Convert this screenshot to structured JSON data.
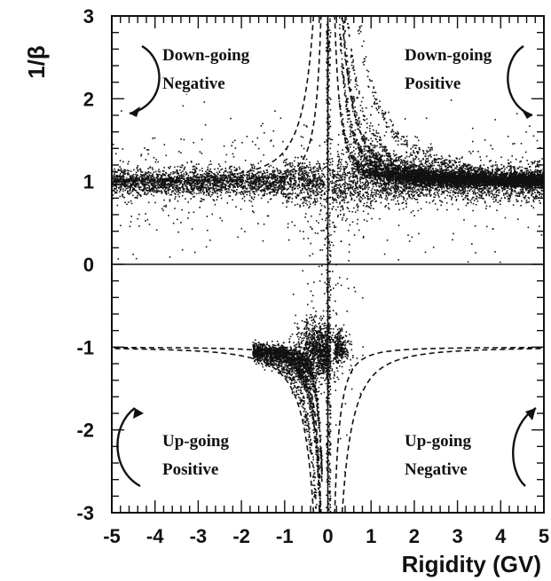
{
  "chart_data": {
    "type": "scatter",
    "title": "",
    "xlabel": "Rigidity (GV)",
    "ylabel": "1/β",
    "xlim": [
      -5,
      5
    ],
    "ylim": [
      -3,
      3
    ],
    "x_ticks": [
      "-5",
      "-4",
      "-3",
      "-2",
      "-1",
      "0",
      "1",
      "2",
      "3",
      "4",
      "5"
    ],
    "y_ticks": [
      "3",
      "2",
      "1",
      "0",
      "-1",
      "-2",
      "-3"
    ],
    "grid": false,
    "reference_lines": {
      "horizontal": [
        0
      ],
      "vertical": [
        0
      ]
    },
    "annotations": [
      {
        "lines": [
          "Down-going",
          "Negative"
        ],
        "quadrant": "top-left"
      },
      {
        "lines": [
          "Down-going",
          "Positive"
        ],
        "quadrant": "top-right"
      },
      {
        "lines": [
          "Up-going",
          "Positive"
        ],
        "quadrant": "bottom-left"
      },
      {
        "lines": [
          "Up-going",
          "Negative"
        ],
        "quadrant": "bottom-right"
      }
    ],
    "series": [
      {
        "kind": "points",
        "color": "#111111",
        "description_band": "down-going particles near 1/beta = 1 across all rigidities",
        "band": {
          "y": 1.0,
          "spread": 0.12,
          "x_range": [
            -5,
            5
          ]
        }
      },
      {
        "kind": "points",
        "color": "#111111",
        "band": {
          "sign": 1,
          "mass_curves": [
            0.45,
            0.7,
            0.95,
            1.25
          ]
        }
      },
      {
        "kind": "points",
        "color": "#111111",
        "band": {
          "sign": -1,
          "mass_curves": [
            0.45,
            0.7,
            0.95,
            1.25
          ]
        }
      },
      {
        "kind": "points",
        "color": "#111111",
        "band": {
          "y": -1.0,
          "spread": 0.15,
          "x_range": [
            -0.8,
            0.6
          ]
        }
      }
    ],
    "dashed_curves": {
      "masses": [
        0.938,
        1.876
      ],
      "color": "#111111"
    }
  }
}
